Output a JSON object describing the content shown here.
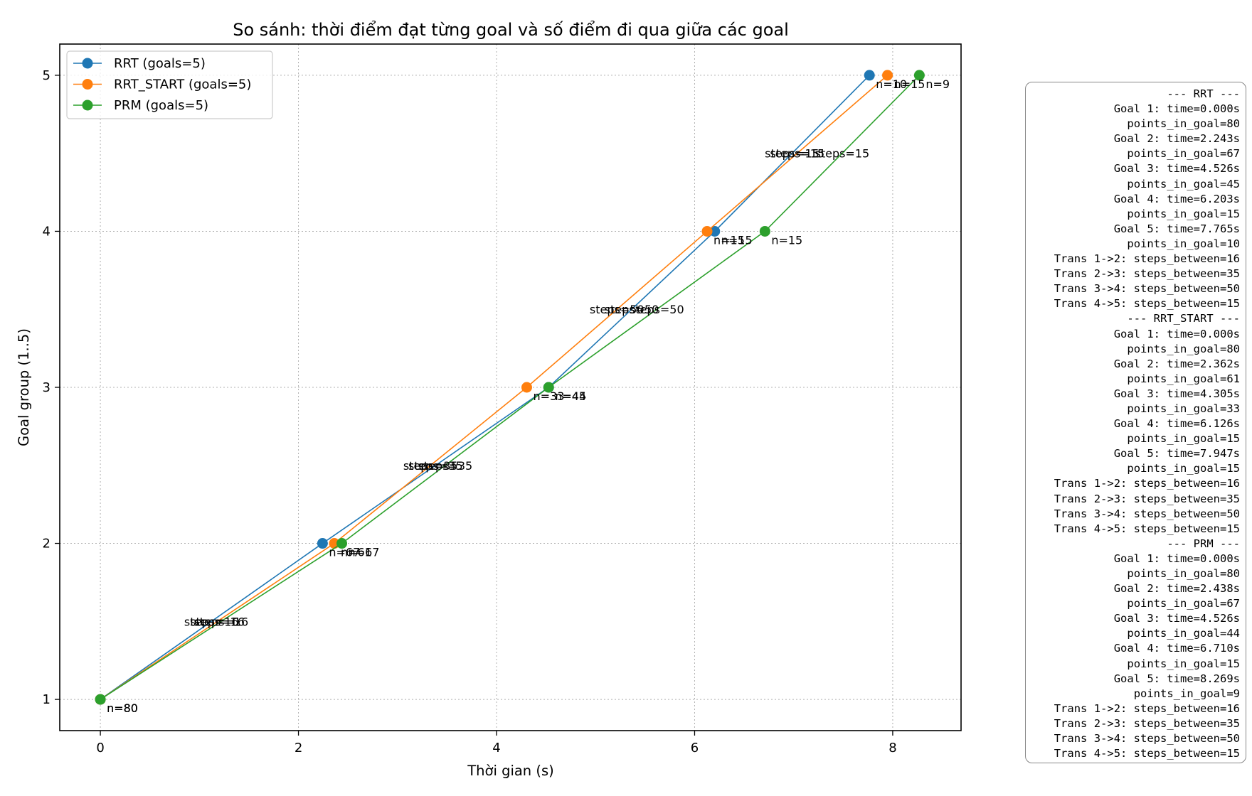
{
  "chart_data": {
    "type": "line",
    "title": "So sánh: thời điểm đạt từng goal và số điểm đi qua giữa các goal",
    "xlabel": "Thời gian (s)",
    "ylabel": "Goal group (1..5)",
    "xlim": [
      -0.41,
      8.69
    ],
    "ylim": [
      0.8,
      5.2
    ],
    "xticks": [
      0,
      2,
      4,
      6,
      8
    ],
    "yticks": [
      1,
      2,
      3,
      4,
      5
    ],
    "grid": true,
    "legend_position": "top-left",
    "series": [
      {
        "name": "RRT (goals=5)",
        "color": "#1f77b4",
        "x": [
          0.0,
          2.243,
          4.526,
          6.203,
          7.765
        ],
        "y": [
          1,
          2,
          3,
          4,
          5
        ],
        "point_labels": [
          "n=80",
          "n=67",
          "n=45",
          "n=15",
          "n=10"
        ],
        "step_labels": [
          "steps=16",
          "steps=35",
          "steps=50",
          "steps=15"
        ]
      },
      {
        "name": "RRT_START (goals=5)",
        "color": "#ff7f0e",
        "x": [
          0.0,
          2.362,
          4.305,
          6.126,
          7.947
        ],
        "y": [
          1,
          2,
          3,
          4,
          5
        ],
        "point_labels": [
          "n=80",
          "n=61",
          "n=33",
          "n=15",
          "n=15"
        ],
        "step_labels": [
          "steps=16",
          "steps=35",
          "steps=50",
          "steps=15"
        ]
      },
      {
        "name": "PRM (goals=5)",
        "color": "#2ca02c",
        "x": [
          0.0,
          2.438,
          4.526,
          6.71,
          8.269
        ],
        "y": [
          1,
          2,
          3,
          4,
          5
        ],
        "point_labels": [
          "n=80",
          "n=67",
          "n=44",
          "n=15",
          "n=9"
        ],
        "step_labels": [
          "steps=16",
          "steps=35",
          "steps=50",
          "steps=15"
        ]
      }
    ]
  },
  "info_lines": [
    "--- RRT ---",
    "Goal 1: time=0.000s",
    "points_in_goal=80",
    "Goal 2: time=2.243s",
    "points_in_goal=67",
    "Goal 3: time=4.526s",
    "points_in_goal=45",
    "Goal 4: time=6.203s",
    "points_in_goal=15",
    "Goal 5: time=7.765s",
    "points_in_goal=10",
    "Trans 1->2: steps_between=16",
    "Trans 2->3: steps_between=35",
    "Trans 3->4: steps_between=50",
    "Trans 4->5: steps_between=15",
    "--- RRT_START ---",
    "Goal 1: time=0.000s",
    "points_in_goal=80",
    "Goal 2: time=2.362s",
    "points_in_goal=61",
    "Goal 3: time=4.305s",
    "points_in_goal=33",
    "Goal 4: time=6.126s",
    "points_in_goal=15",
    "Goal 5: time=7.947s",
    "points_in_goal=15",
    "Trans 1->2: steps_between=16",
    "Trans 2->3: steps_between=35",
    "Trans 3->4: steps_between=50",
    "Trans 4->5: steps_between=15",
    "--- PRM ---",
    "Goal 1: time=0.000s",
    "points_in_goal=80",
    "Goal 2: time=2.438s",
    "points_in_goal=67",
    "Goal 3: time=4.526s",
    "points_in_goal=44",
    "Goal 4: time=6.710s",
    "points_in_goal=15",
    "Goal 5: time=8.269s",
    "points_in_goal=9",
    "Trans 1->2: steps_between=16",
    "Trans 2->3: steps_between=35",
    "Trans 3->4: steps_between=50",
    "Trans 4->5: steps_between=15"
  ]
}
